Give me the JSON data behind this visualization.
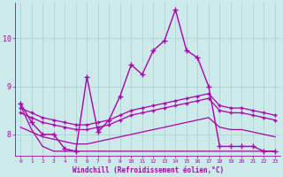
{
  "xlabel": "Windchill (Refroidissement éolien,°C)",
  "bg_color": "#cceaea",
  "grid_color": "#aacccc",
  "line_color": "#aa00aa",
  "ylim": [
    7.55,
    10.75
  ],
  "xlim": [
    -0.5,
    23.5
  ],
  "yticks": [
    8,
    9,
    10
  ],
  "xticks": [
    0,
    1,
    2,
    3,
    4,
    5,
    6,
    7,
    8,
    9,
    10,
    11,
    12,
    13,
    14,
    15,
    16,
    17,
    18,
    19,
    20,
    21,
    22,
    23
  ],
  "lines": [
    {
      "x": [
        0,
        1,
        2,
        3,
        4,
        5,
        6,
        7,
        8,
        9,
        10,
        11,
        12,
        13,
        14,
        15,
        16,
        17,
        18,
        19,
        20,
        21,
        22,
        23
      ],
      "y": [
        8.65,
        8.25,
        8.0,
        8.0,
        7.7,
        7.65,
        9.2,
        8.05,
        8.3,
        8.8,
        9.45,
        9.25,
        9.75,
        9.95,
        10.6,
        9.75,
        9.6,
        9.0,
        7.75,
        7.75,
        7.75,
        7.75,
        7.65,
        7.65
      ],
      "marker": "+",
      "markersize": 4,
      "linewidth": 1.0
    },
    {
      "x": [
        0,
        1,
        2,
        3,
        4,
        5,
        6,
        7,
        8,
        9,
        10,
        11,
        12,
        13,
        14,
        15,
        16,
        17,
        18,
        19,
        20,
        21,
        22,
        23
      ],
      "y": [
        8.55,
        8.45,
        8.35,
        8.3,
        8.25,
        8.2,
        8.2,
        8.25,
        8.3,
        8.4,
        8.5,
        8.55,
        8.6,
        8.65,
        8.7,
        8.75,
        8.8,
        8.85,
        8.6,
        8.55,
        8.55,
        8.5,
        8.45,
        8.4
      ],
      "marker": "+",
      "markersize": 3,
      "linewidth": 0.9
    },
    {
      "x": [
        0,
        1,
        2,
        3,
        4,
        5,
        6,
        7,
        8,
        9,
        10,
        11,
        12,
        13,
        14,
        15,
        16,
        17,
        18,
        19,
        20,
        21,
        22,
        23
      ],
      "y": [
        8.45,
        8.35,
        8.25,
        8.2,
        8.15,
        8.1,
        8.1,
        8.15,
        8.2,
        8.3,
        8.4,
        8.45,
        8.5,
        8.55,
        8.6,
        8.65,
        8.7,
        8.75,
        8.5,
        8.45,
        8.45,
        8.4,
        8.35,
        8.3
      ],
      "marker": "+",
      "markersize": 3,
      "linewidth": 0.9
    },
    {
      "x": [
        0,
        1,
        2,
        3,
        4,
        5,
        6,
        7,
        8,
        9,
        10,
        11,
        12,
        13,
        14,
        15,
        16,
        17,
        18,
        19,
        20,
        21,
        22,
        23
      ],
      "y": [
        8.15,
        8.05,
        7.95,
        7.9,
        7.85,
        7.8,
        7.8,
        7.85,
        7.9,
        7.95,
        8.0,
        8.05,
        8.1,
        8.15,
        8.2,
        8.25,
        8.3,
        8.35,
        8.15,
        8.1,
        8.1,
        8.05,
        8.0,
        7.95
      ],
      "marker": null,
      "markersize": 0,
      "linewidth": 0.9
    },
    {
      "x": [
        0,
        1,
        2,
        3,
        4,
        5,
        6,
        7,
        8,
        9,
        10,
        11,
        12,
        13,
        14,
        15,
        16,
        17,
        18,
        19,
        20,
        21,
        22,
        23
      ],
      "y": [
        8.6,
        8.1,
        7.75,
        7.65,
        7.65,
        7.65,
        7.65,
        7.65,
        7.65,
        7.65,
        7.65,
        7.65,
        7.65,
        7.65,
        7.65,
        7.65,
        7.65,
        7.65,
        7.65,
        7.65,
        7.65,
        7.65,
        7.65,
        7.65
      ],
      "marker": null,
      "markersize": 0,
      "linewidth": 0.9
    }
  ]
}
